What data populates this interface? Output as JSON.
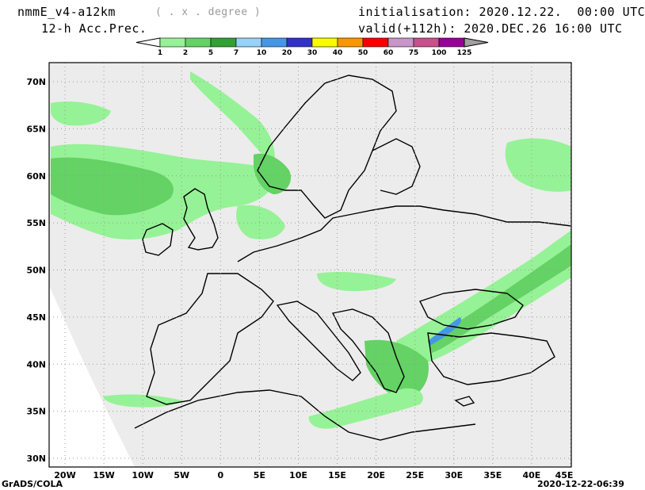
{
  "header": {
    "model": "nmmE_v4-a12km",
    "units": "( . x . degree )",
    "field": "12-h Acc.Prec.",
    "init": "initialisation: 2020.12.22.  00:00 UTC",
    "valid": "valid(+112h): 2020.DEC.26 16:00 UTC"
  },
  "colorbar": {
    "labels": [
      "1",
      "2",
      "5",
      "7",
      "10",
      "20",
      "30",
      "40",
      "50",
      "60",
      "75",
      "100",
      "125"
    ],
    "colors": [
      "#ffffff",
      "#96f296",
      "#64d264",
      "#32a032",
      "#96d2f9",
      "#4696e6",
      "#3232c8",
      "#fafa00",
      "#fa9600",
      "#fa0000",
      "#c896c8",
      "#c8508c",
      "#960096",
      "#a0a0a0"
    ]
  },
  "map": {
    "lat_labels": [
      "70N",
      "65N",
      "60N",
      "55N",
      "50N",
      "45N",
      "40N",
      "35N",
      "30N"
    ],
    "lon_labels": [
      "20W",
      "15W",
      "10W",
      "5W",
      "0",
      "5E",
      "10E",
      "15E",
      "20E",
      "25E",
      "30E",
      "35E",
      "40E",
      "45E"
    ],
    "background": "#ececec"
  },
  "footer": {
    "left": "GrADS/COLA",
    "right": "2020-12-22-06:39"
  }
}
